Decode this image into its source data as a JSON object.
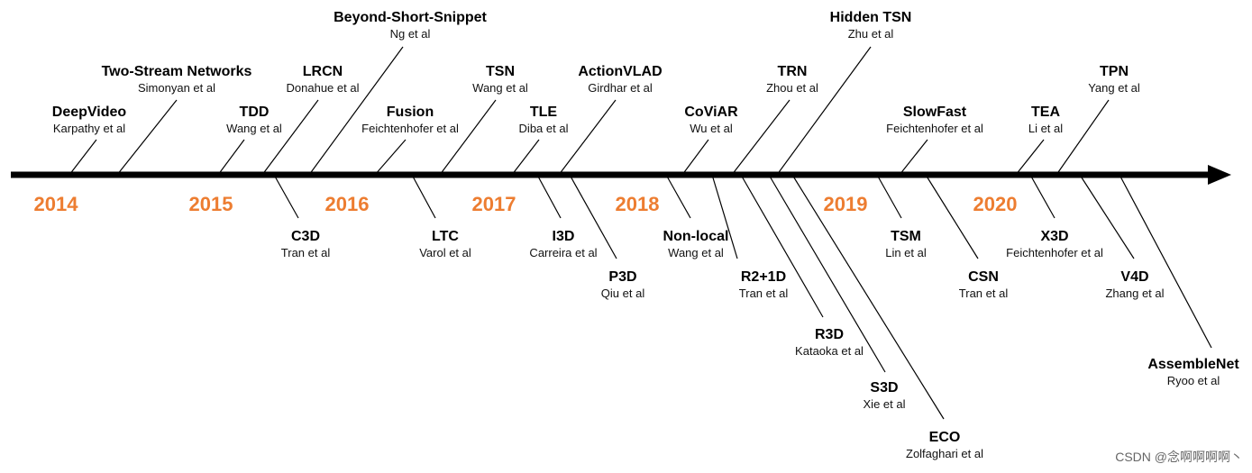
{
  "years": [
    "2014",
    "2015",
    "2016",
    "2017",
    "2018",
    "2019",
    "2020"
  ],
  "above": [
    {
      "name": "DeepVideo",
      "author": "Karpathy et al"
    },
    {
      "name": "Two-Stream Networks",
      "author": "Simonyan et al"
    },
    {
      "name": "TDD",
      "author": "Wang et al"
    },
    {
      "name": "LRCN",
      "author": "Donahue et al"
    },
    {
      "name": "Beyond-Short-Snippet",
      "author": "Ng et al"
    },
    {
      "name": "Fusion",
      "author": "Feichtenhofer et al"
    },
    {
      "name": "TSN",
      "author": "Wang et al"
    },
    {
      "name": "TLE",
      "author": "Diba et al"
    },
    {
      "name": "ActionVLAD",
      "author": "Girdhar et al"
    },
    {
      "name": "CoViAR",
      "author": "Wu et al"
    },
    {
      "name": "TRN",
      "author": "Zhou et al"
    },
    {
      "name": "Hidden TSN",
      "author": "Zhu et al"
    },
    {
      "name": "SlowFast",
      "author": "Feichtenhofer et al"
    },
    {
      "name": "TEA",
      "author": "Li et al"
    },
    {
      "name": "TPN",
      "author": "Yang et al"
    }
  ],
  "below": [
    {
      "name": "C3D",
      "author": "Tran et al"
    },
    {
      "name": "LTC",
      "author": "Varol et al"
    },
    {
      "name": "I3D",
      "author": "Carreira et al"
    },
    {
      "name": "P3D",
      "author": "Qiu et al"
    },
    {
      "name": "Non-local",
      "author": "Wang et al"
    },
    {
      "name": "R2+1D",
      "author": "Tran et al"
    },
    {
      "name": "R3D",
      "author": "Kataoka et al"
    },
    {
      "name": "S3D",
      "author": "Xie et al"
    },
    {
      "name": "ECO",
      "author": "Zolfaghari et al"
    },
    {
      "name": "TSM",
      "author": "Lin et al"
    },
    {
      "name": "CSN",
      "author": "Tran et al"
    },
    {
      "name": "X3D",
      "author": "Feichtenhofer et al"
    },
    {
      "name": "V4D",
      "author": "Zhang et al"
    },
    {
      "name": "AssembleNet",
      "author": "Ryoo et al"
    }
  ],
  "watermark": "CSDN @念啊啊啊啊丶",
  "colors": {
    "year": "#ED7D31",
    "axis": "#000000"
  }
}
